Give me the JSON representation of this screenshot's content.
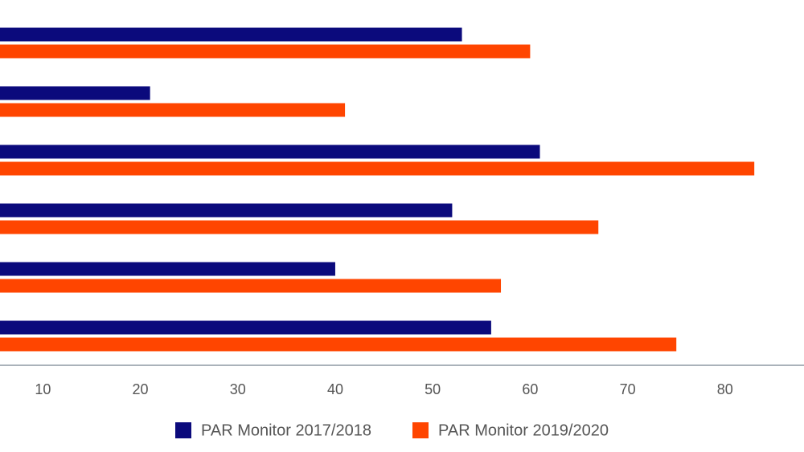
{
  "chart_data": {
    "type": "bar",
    "orientation": "horizontal",
    "categories": [
      null,
      null,
      null,
      null,
      null,
      null
    ],
    "series": [
      {
        "name": "PAR Monitor 2017/2018",
        "color": "#0b0a7c",
        "values": [
          53,
          21,
          61,
          52,
          40,
          56
        ]
      },
      {
        "name": "PAR Monitor 2019/2020",
        "color": "#ff4500",
        "values": [
          60,
          41,
          83,
          67,
          57,
          75
        ]
      }
    ],
    "xlim": [
      5.6,
      88.1
    ],
    "xticks": [
      10,
      20,
      30,
      40,
      50,
      60,
      70,
      80
    ],
    "grid": false,
    "legend": "bottom"
  }
}
